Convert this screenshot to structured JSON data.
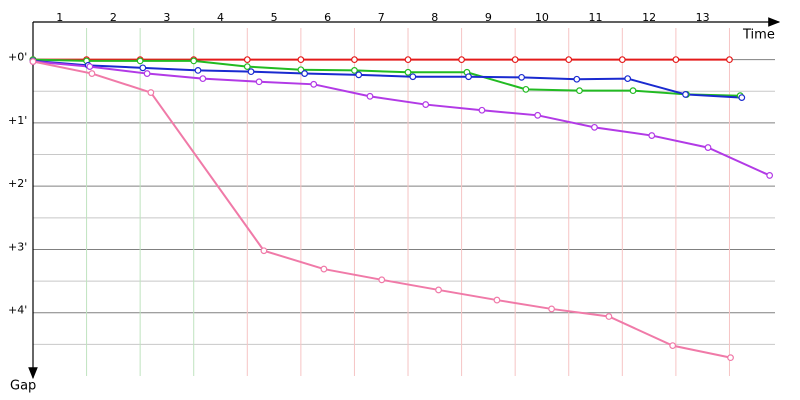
{
  "chart_data": {
    "type": "line",
    "x_label": "Time",
    "y_label": "Gap",
    "categories": [
      "1",
      "2",
      "3",
      "4",
      "5",
      "6",
      "7",
      "8",
      "9",
      "10",
      "11",
      "12",
      "13"
    ],
    "xlim": [
      0,
      13.85
    ],
    "xticks": [
      1,
      2,
      3,
      4,
      5,
      6,
      7,
      8,
      9,
      10,
      11,
      12,
      13
    ],
    "ylim": [
      -0.5,
      5
    ],
    "yticks": [
      {
        "value": 0,
        "label": "+0'"
      },
      {
        "value": 1,
        "label": "+1'"
      },
      {
        "value": 2,
        "label": "+2'"
      },
      {
        "value": 3,
        "label": "+3'"
      },
      {
        "value": 4,
        "label": "+4'"
      }
    ],
    "minor_yticks": [
      0.5,
      1.5,
      2.5,
      3.5,
      4.5
    ],
    "grid": true,
    "series": [
      {
        "color": "#e41a1a",
        "x": [
          0,
          1,
          2,
          3,
          4,
          5,
          6,
          7,
          8,
          9,
          10,
          11,
          12,
          13
        ],
        "values": [
          0,
          0,
          0,
          0,
          0,
          0,
          0,
          0,
          0,
          0,
          0,
          0,
          0,
          0
        ]
      },
      {
        "color": "#22bb22",
        "x": [
          0,
          1,
          2,
          3,
          4,
          5,
          6,
          7,
          8.1,
          9.2,
          10.2,
          11.2,
          12.2,
          13.2
        ],
        "values": [
          0,
          0.02,
          0.02,
          0.02,
          0.11,
          0.16,
          0.17,
          0.2,
          0.2,
          0.47,
          0.49,
          0.49,
          0.55,
          0.57
        ]
      },
      {
        "color": "#1a2ad0",
        "x": [
          0,
          1.03,
          2.05,
          3.08,
          4.07,
          5.07,
          6.08,
          7.09,
          8.13,
          9.12,
          10.15,
          11.1,
          12.18,
          13.23
        ],
        "values": [
          0.02,
          0.09,
          0.13,
          0.17,
          0.19,
          0.22,
          0.24,
          0.27,
          0.27,
          0.28,
          0.31,
          0.3,
          0.55,
          0.6
        ]
      },
      {
        "color": "#b23ae6",
        "x": [
          0,
          1.06,
          2.13,
          3.17,
          4.22,
          5.24,
          6.29,
          7.33,
          8.38,
          9.42,
          10.48,
          11.55,
          12.6,
          13.75
        ],
        "values": [
          0.03,
          0.11,
          0.22,
          0.3,
          0.35,
          0.39,
          0.58,
          0.71,
          0.8,
          0.88,
          1.07,
          1.2,
          1.39,
          1.83
        ]
      },
      {
        "color": "#f07aa8",
        "x": [
          0,
          1.1,
          2.2,
          4.31,
          5.43,
          6.51,
          7.57,
          8.66,
          9.68,
          10.75,
          11.94,
          13.02
        ],
        "values": [
          0.03,
          0.22,
          0.52,
          3.02,
          3.31,
          3.48,
          3.64,
          3.8,
          3.94,
          4.06,
          4.52,
          4.71
        ]
      }
    ]
  }
}
